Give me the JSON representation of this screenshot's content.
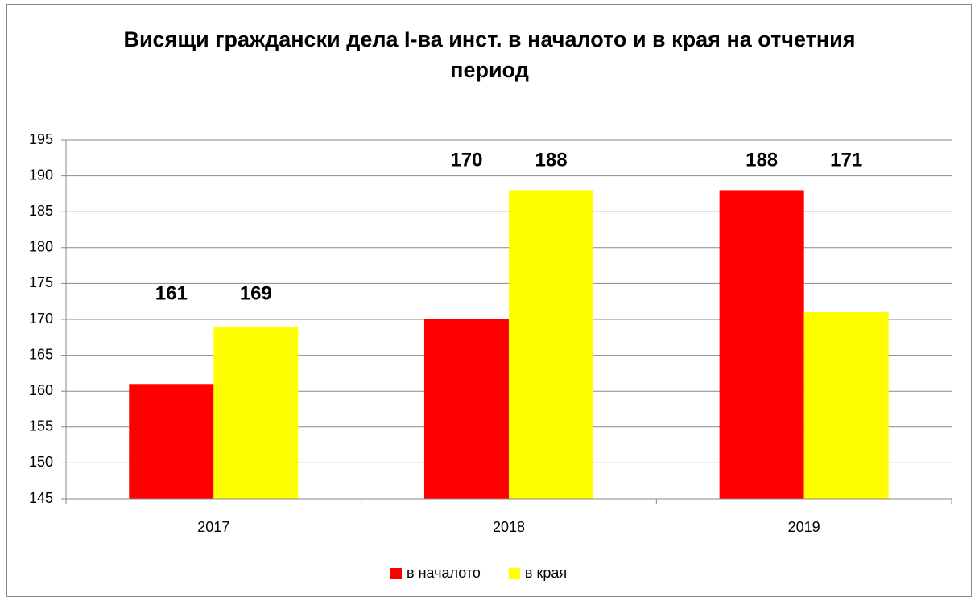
{
  "chart_data": {
    "type": "bar",
    "title": "Висящи граждански дела І-ва инст. в началото и в края на отчетния период",
    "categories": [
      "2017",
      "2018",
      "2019"
    ],
    "series": [
      {
        "name": "в началото",
        "color": "#ff0000",
        "values": [
          161,
          170,
          188
        ]
      },
      {
        "name": "в края",
        "color": "#ffff00",
        "values": [
          169,
          188,
          171
        ]
      }
    ],
    "ylim": [
      145,
      195
    ],
    "yticks": [
      145,
      150,
      155,
      160,
      165,
      170,
      175,
      180,
      185,
      190,
      195
    ],
    "grid": true,
    "legend": "bottom"
  }
}
